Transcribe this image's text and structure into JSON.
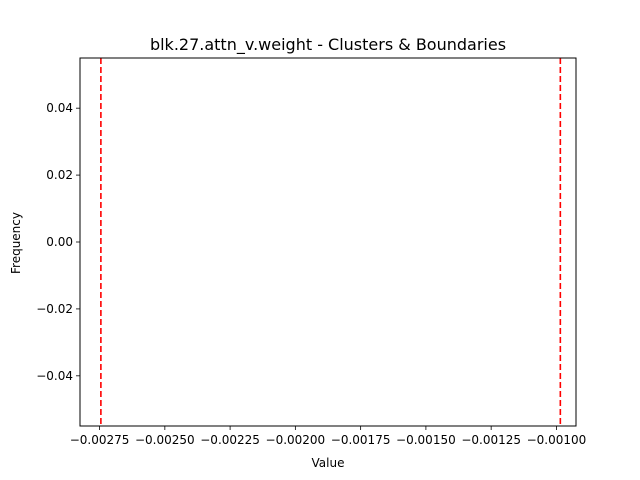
{
  "chart_data": {
    "type": "histogram",
    "title": "blk.27.attn_v.weight - Clusters & Boundaries",
    "xlabel": "Value",
    "ylabel": "Frequency",
    "xlim": [
      -0.002825,
      -0.000925
    ],
    "ylim": [
      -0.055,
      0.055
    ],
    "x_ticks": [
      -0.00275,
      -0.0025,
      -0.00225,
      -0.002,
      -0.00175,
      -0.0015,
      -0.00125,
      -0.001
    ],
    "x_tick_labels": [
      "−0.00275",
      "−0.00250",
      "−0.00225",
      "−0.00200",
      "−0.00175",
      "−0.00150",
      "−0.00125",
      "−0.00100"
    ],
    "y_ticks": [
      0.04,
      0.02,
      0.0,
      -0.02,
      -0.04
    ],
    "y_tick_labels": [
      "0.04",
      "0.02",
      "0.00",
      "−0.02",
      "−0.04"
    ],
    "boundaries": [
      -0.002745,
      -0.000985
    ],
    "boundary_color": "#ff0000",
    "grid": false
  }
}
